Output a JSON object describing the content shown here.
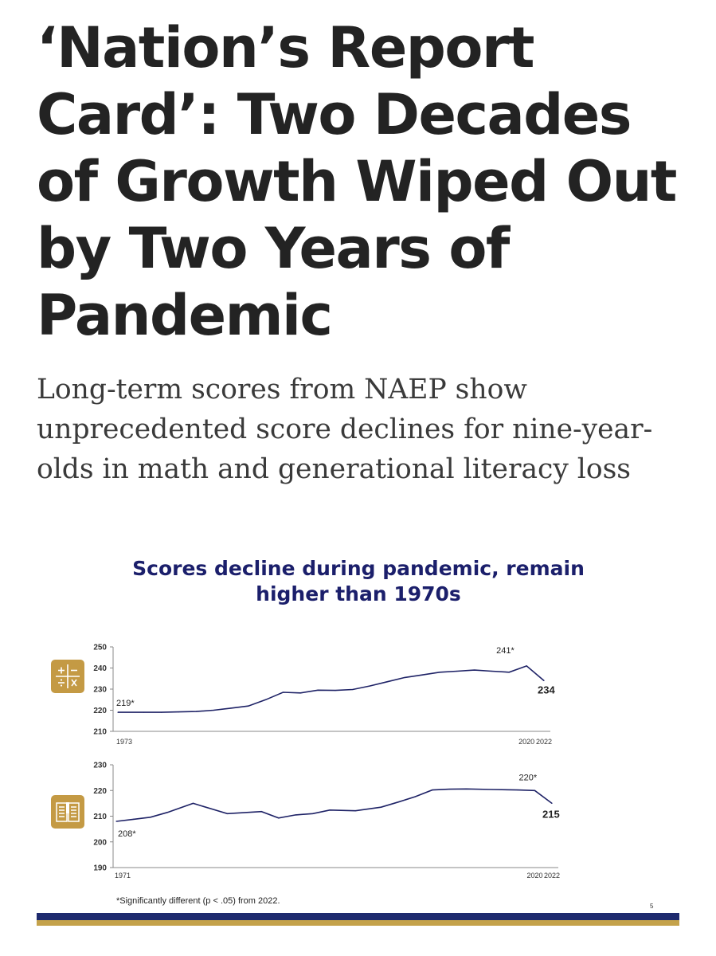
{
  "article": {
    "headline": "‘Nation’s Report Card’: Two Decades of Growth Wiped Out by Two Years of Pandemic",
    "subheadline": "Long-term scores from NAEP show unprecedented score declines for nine-year-olds in math and generational literacy loss"
  },
  "slide": {
    "footnote": "*Significantly different (p < .05) from 2022.",
    "page_number": "5"
  },
  "icons": {
    "math": "math-operators-icon",
    "reading": "open-book-icon"
  },
  "colors": {
    "title": "#1b1f6b",
    "line": "#1e2266",
    "icon_bg": "#c49a44",
    "bar_navy": "#1e2a6e",
    "bar_gold": "#c4a24a"
  },
  "chart_data": [
    {
      "type": "line",
      "title": "Scores decline during pandemic, remain higher than 1970s",
      "subject": "math",
      "x": [
        1973,
        1976,
        1978,
        1980,
        1982,
        1984,
        1986,
        1988,
        1990,
        1992,
        1994,
        1996,
        1998,
        2000,
        2002,
        2004,
        2006,
        2008,
        2010,
        2012,
        2014,
        2016,
        2018,
        2020,
        2022
      ],
      "values": [
        219,
        219,
        219,
        219.2,
        219.4,
        220,
        221,
        222,
        225,
        228.5,
        228.2,
        229.5,
        229.4,
        229.8,
        231.5,
        233.5,
        235.5,
        236.7,
        238,
        238.5,
        239,
        238.5,
        238,
        241,
        234
      ],
      "point_labels": [
        {
          "x": 1973,
          "text": "219*"
        },
        {
          "x": 2020,
          "text": "241*"
        },
        {
          "x": 2022,
          "text": "234"
        }
      ],
      "y_ticks": [
        "250",
        "240",
        "230",
        "220",
        "210"
      ],
      "x_tick_labels": [
        "1973",
        "2020",
        "2022"
      ],
      "ylim": [
        210,
        250
      ]
    },
    {
      "type": "line",
      "subject": "reading",
      "x": [
        1971,
        1973,
        1975,
        1977,
        1980,
        1984,
        1988,
        1990,
        1992,
        1994,
        1996,
        1999,
        2002,
        2004,
        2006,
        2008,
        2010,
        2012,
        2015,
        2018,
        2020,
        2022
      ],
      "values": [
        208,
        208.8,
        209.6,
        211.5,
        215,
        211,
        211.8,
        209.3,
        210.5,
        211,
        212.4,
        212.1,
        213.5,
        215.5,
        217.6,
        220.2,
        220.5,
        220.6,
        220.4,
        220.2,
        220,
        215
      ],
      "point_labels": [
        {
          "x": 1971,
          "text": "208*"
        },
        {
          "x": 2020,
          "text": "220*"
        },
        {
          "x": 2022,
          "text": "215"
        }
      ],
      "y_ticks": [
        "230",
        "220",
        "210",
        "200",
        "190"
      ],
      "x_tick_labels": [
        "1971",
        "2020",
        "2022"
      ],
      "ylim": [
        190,
        230
      ]
    }
  ]
}
